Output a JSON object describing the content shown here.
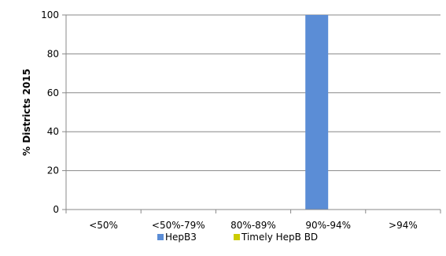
{
  "chart_data": {
    "type": "bar",
    "categories": [
      "<50%",
      "<50%-79%",
      "80%-89%",
      "90%-94%",
      ">94%"
    ],
    "series": [
      {
        "name": "HepB3",
        "values": [
          0,
          0,
          0,
          100,
          0
        ],
        "color": "#5B8DD6"
      },
      {
        "name": "Timely HepB BD",
        "values": [
          0,
          0,
          0,
          0,
          0
        ],
        "color": "#CCCC00"
      }
    ],
    "ylabel": "% Districts 2015",
    "xlabel": "",
    "ylim": [
      0,
      100
    ],
    "yticks": [
      0,
      20,
      40,
      60,
      80,
      100
    ],
    "grid": true,
    "legend_position": "bottom"
  }
}
